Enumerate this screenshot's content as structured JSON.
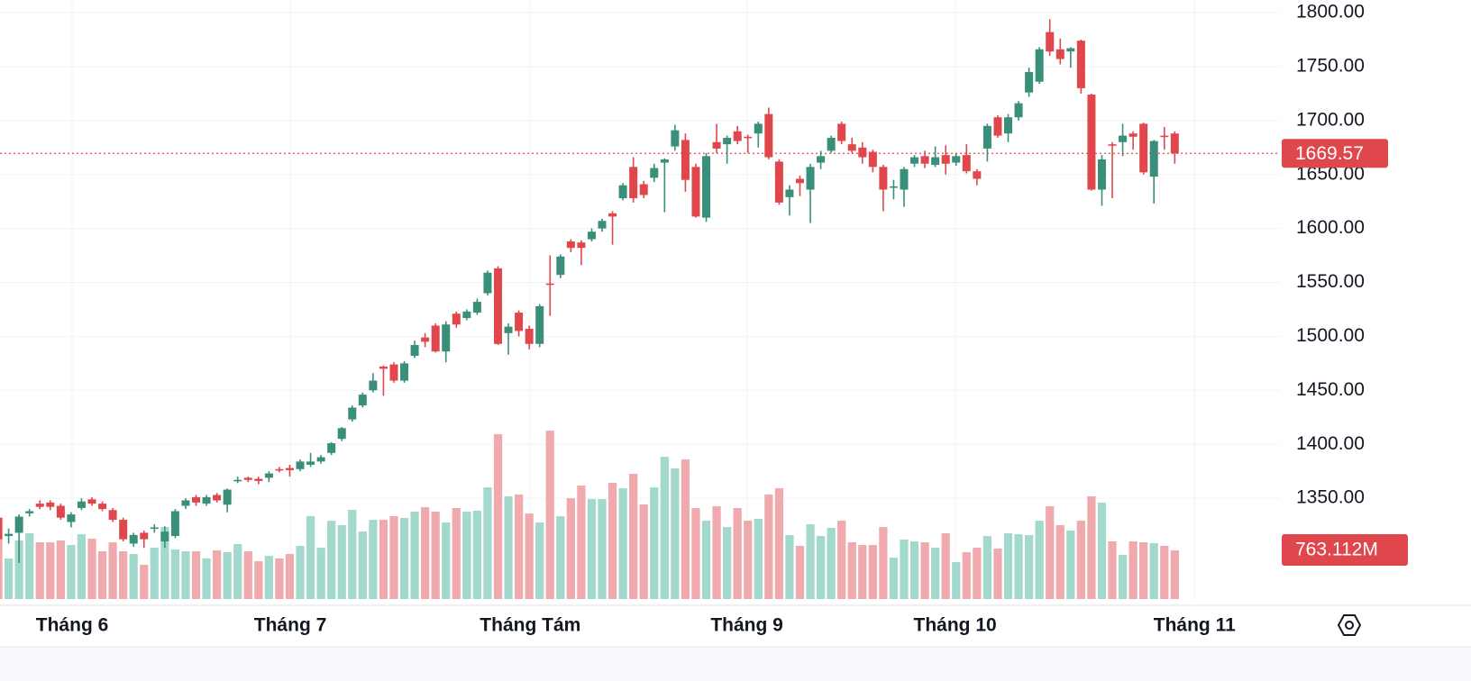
{
  "chart_data": {
    "type": "candlestick",
    "up_color": "#3a8f7a",
    "down_color": "#e0474c",
    "grid": true,
    "xlim": [
      0.17,
      123.1
    ],
    "ylim": [
      1256.6,
      1811.7
    ],
    "yticks": [
      {
        "value": 1350,
        "label": "1350.00"
      },
      {
        "value": 1400,
        "label": "1400.00"
      },
      {
        "value": 1450,
        "label": "1450.00"
      },
      {
        "value": 1500,
        "label": "1500.00"
      },
      {
        "value": 1550,
        "label": "1550.00"
      },
      {
        "value": 1600,
        "label": "1600.00"
      },
      {
        "value": 1650,
        "label": "1650.00"
      },
      {
        "value": 1700,
        "label": "1700.00"
      },
      {
        "value": 1750,
        "label": "1750.00"
      },
      {
        "value": 1800,
        "label": "1800.00"
      }
    ],
    "xticks": [
      {
        "value": 7.1,
        "label": "Tháng 6"
      },
      {
        "value": 28.05,
        "label": "Tháng 7"
      },
      {
        "value": 51.1,
        "label": "Tháng Tám"
      },
      {
        "value": 71.9,
        "label": "Tháng 9"
      },
      {
        "value": 91.9,
        "label": "Tháng 10"
      },
      {
        "value": 114.9,
        "label": "Tháng 11"
      }
    ],
    "open": [
      1332,
      1315,
      1318,
      1336,
      1345,
      1346,
      1343,
      1328,
      1341,
      1349,
      1345,
      1339,
      1330,
      1308,
      1318,
      1322,
      1310,
      1315,
      1343,
      1351,
      1345,
      1353,
      1344,
      1366,
      1369,
      1368,
      1369,
      1377,
      1378,
      1377,
      1381,
      1384,
      1392,
      1405,
      1423,
      1436,
      1450,
      1472,
      1474,
      1459,
      1482,
      1499,
      1510,
      1486,
      1521,
      1517,
      1522,
      1540,
      1563,
      1503,
      1522,
      1507,
      1493,
      1549,
      1557,
      1588,
      1587,
      1590,
      1600,
      1614,
      1628,
      1657,
      1641,
      1647,
      1661,
      1676,
      1682,
      1657,
      1610,
      1680,
      1678,
      1690,
      1685,
      1688,
      1706,
      1662,
      1629,
      1646,
      1636,
      1661,
      1672,
      1697,
      1678,
      1675,
      1671,
      1657,
      1638,
      1636,
      1660,
      1667,
      1659,
      1668,
      1661,
      1668,
      1653,
      1674,
      1703,
      1688,
      1703,
      1726,
      1736,
      1782,
      1766,
      1764,
      1774,
      1724,
      1636,
      1678,
      1680,
      1688,
      1697,
      1648,
      1686,
      1688
    ],
    "high": [
      1335,
      1322,
      1335,
      1340,
      1348,
      1348,
      1345,
      1337,
      1350,
      1351,
      1347,
      1341,
      1332,
      1318,
      1320,
      1326,
      1324,
      1340,
      1350,
      1353,
      1353,
      1355,
      1359,
      1370,
      1370,
      1370,
      1375,
      1379,
      1381,
      1386,
      1392,
      1390,
      1402,
      1416,
      1436,
      1448,
      1466,
      1473,
      1476,
      1477,
      1496,
      1503,
      1512,
      1514,
      1523,
      1525,
      1535,
      1561,
      1565,
      1512,
      1524,
      1510,
      1530,
      1575,
      1576,
      1590,
      1589,
      1600,
      1609,
      1616,
      1642,
      1666,
      1644,
      1660,
      1665,
      1696,
      1688,
      1660,
      1670,
      1697,
      1686,
      1695,
      1687,
      1699,
      1712,
      1664,
      1640,
      1649,
      1660,
      1672,
      1686,
      1699,
      1684,
      1680,
      1673,
      1659,
      1645,
      1657,
      1668,
      1672,
      1676,
      1677,
      1670,
      1678,
      1655,
      1697,
      1705,
      1706,
      1718,
      1749,
      1768,
      1794,
      1776,
      1768,
      1775,
      1725,
      1668,
      1680,
      1697,
      1690,
      1698,
      1682,
      1694,
      1690
    ],
    "low": [
      1308,
      1308,
      1290,
      1333,
      1340,
      1339,
      1330,
      1323,
      1339,
      1343,
      1338,
      1328,
      1310,
      1305,
      1304,
      1318,
      1304,
      1313,
      1340,
      1343,
      1343,
      1346,
      1337,
      1364,
      1365,
      1363,
      1365,
      1374,
      1370,
      1375,
      1379,
      1382,
      1390,
      1403,
      1421,
      1434,
      1448,
      1445,
      1457,
      1457,
      1480,
      1490,
      1485,
      1476,
      1508,
      1515,
      1520,
      1538,
      1492,
      1483,
      1500,
      1488,
      1490,
      1519,
      1554,
      1578,
      1566,
      1588,
      1597,
      1585,
      1626,
      1624,
      1628,
      1643,
      1615,
      1672,
      1634,
      1610,
      1606,
      1670,
      1660,
      1678,
      1670,
      1675,
      1664,
      1622,
      1612,
      1630,
      1605,
      1655,
      1670,
      1678,
      1670,
      1660,
      1652,
      1616,
      1627,
      1620,
      1657,
      1656,
      1657,
      1650,
      1658,
      1651,
      1640,
      1662,
      1684,
      1680,
      1700,
      1722,
      1734,
      1760,
      1752,
      1749,
      1725,
      1635,
      1621,
      1628,
      1667,
      1673,
      1650,
      1623,
      1673,
      1660
    ],
    "close": [
      1312,
      1317,
      1333,
      1338,
      1342,
      1342,
      1332,
      1335,
      1347,
      1345,
      1340,
      1330,
      1312,
      1316,
      1312,
      1323,
      1319,
      1338,
      1348,
      1346,
      1351,
      1348,
      1358,
      1367,
      1367,
      1366,
      1373,
      1376,
      1376,
      1384,
      1384,
      1388,
      1401,
      1415,
      1434,
      1446,
      1459,
      1470,
      1459,
      1475,
      1492,
      1495,
      1486,
      1511,
      1511,
      1523,
      1532,
      1559,
      1493,
      1509,
      1505,
      1493,
      1528,
      1548,
      1574,
      1582,
      1582,
      1597,
      1607,
      1611,
      1640,
      1628,
      1631,
      1656,
      1664,
      1691,
      1645,
      1611,
      1667,
      1674,
      1684,
      1681,
      1684,
      1697,
      1666,
      1624,
      1636,
      1642,
      1657,
      1667,
      1684,
      1681,
      1672,
      1666,
      1657,
      1636,
      1639,
      1655,
      1666,
      1660,
      1666,
      1660,
      1667,
      1653,
      1646,
      1695,
      1686,
      1703,
      1716,
      1745,
      1766,
      1764,
      1757,
      1767,
      1730,
      1636,
      1664,
      1677,
      1686,
      1685,
      1652,
      1681,
      1685,
      1669.57
    ],
    "volume": {
      "up_color": "#a3d9cc",
      "down_color": "#f0a9ad",
      "ylim": [
        0,
        9400
      ],
      "last_label": "763.112M",
      "values": [
        1272,
        636,
        918,
        1031,
        890,
        890,
        918,
        848,
        1017,
        947,
        749,
        890,
        749,
        706,
        537,
        805,
        1130,
        777,
        749,
        749,
        636,
        763,
        735,
        862,
        749,
        593,
        678,
        636,
        706,
        834,
        1300,
        805,
        1229,
        1159,
        1399,
        1060,
        1243,
        1243,
        1300,
        1272,
        1371,
        1441,
        1371,
        1201,
        1427,
        1371,
        1385,
        1752,
        2586,
        1611,
        1639,
        1342,
        1201,
        2642,
        1300,
        1583,
        1780,
        1568,
        1568,
        1823,
        1738,
        1964,
        1484,
        1752,
        2233,
        2049,
        2190,
        1427,
        1229,
        1455,
        1130,
        1427,
        1229,
        1258,
        1639,
        1738,
        1003,
        834,
        1173,
        989,
        1116,
        1229,
        890,
        848,
        848,
        1130,
        650,
        933,
        904,
        890,
        805,
        1031,
        579,
        735,
        805,
        989,
        791,
        1031,
        1017,
        1003,
        1229,
        1455,
        1159,
        1074,
        1229,
        1611,
        1512,
        904,
        692,
        904,
        890,
        876,
        834,
        763.112
      ]
    }
  }
}
